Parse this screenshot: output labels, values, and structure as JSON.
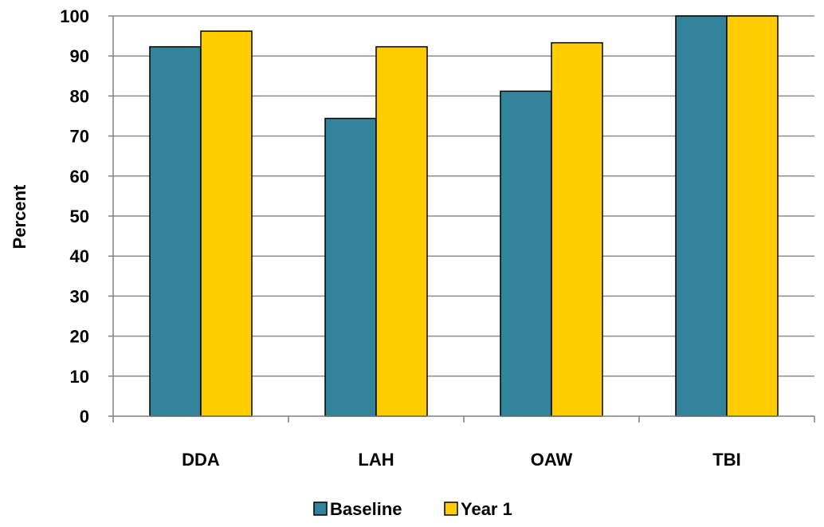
{
  "chart_data": {
    "type": "bar",
    "title": "",
    "xlabel": "",
    "ylabel": "Percent",
    "categories": [
      "DDA",
      "LAH",
      "OAW",
      "TBI"
    ],
    "series": [
      {
        "name": "Baseline",
        "values": [
          92.3,
          74.4,
          81.2,
          100
        ],
        "color": "#31849B"
      },
      {
        "name": "Year 1",
        "values": [
          96.2,
          92.3,
          93.3,
          100
        ],
        "color": "#FFCC00"
      }
    ],
    "ylim": [
      0,
      100
    ],
    "yticks": [
      0,
      10,
      20,
      30,
      40,
      50,
      60,
      70,
      80,
      90,
      100
    ],
    "grid": true,
    "legend_position": "bottom"
  },
  "colors": {
    "grid": "#8C8C8C",
    "bar_outline": "#000000",
    "axis": "#808080"
  }
}
